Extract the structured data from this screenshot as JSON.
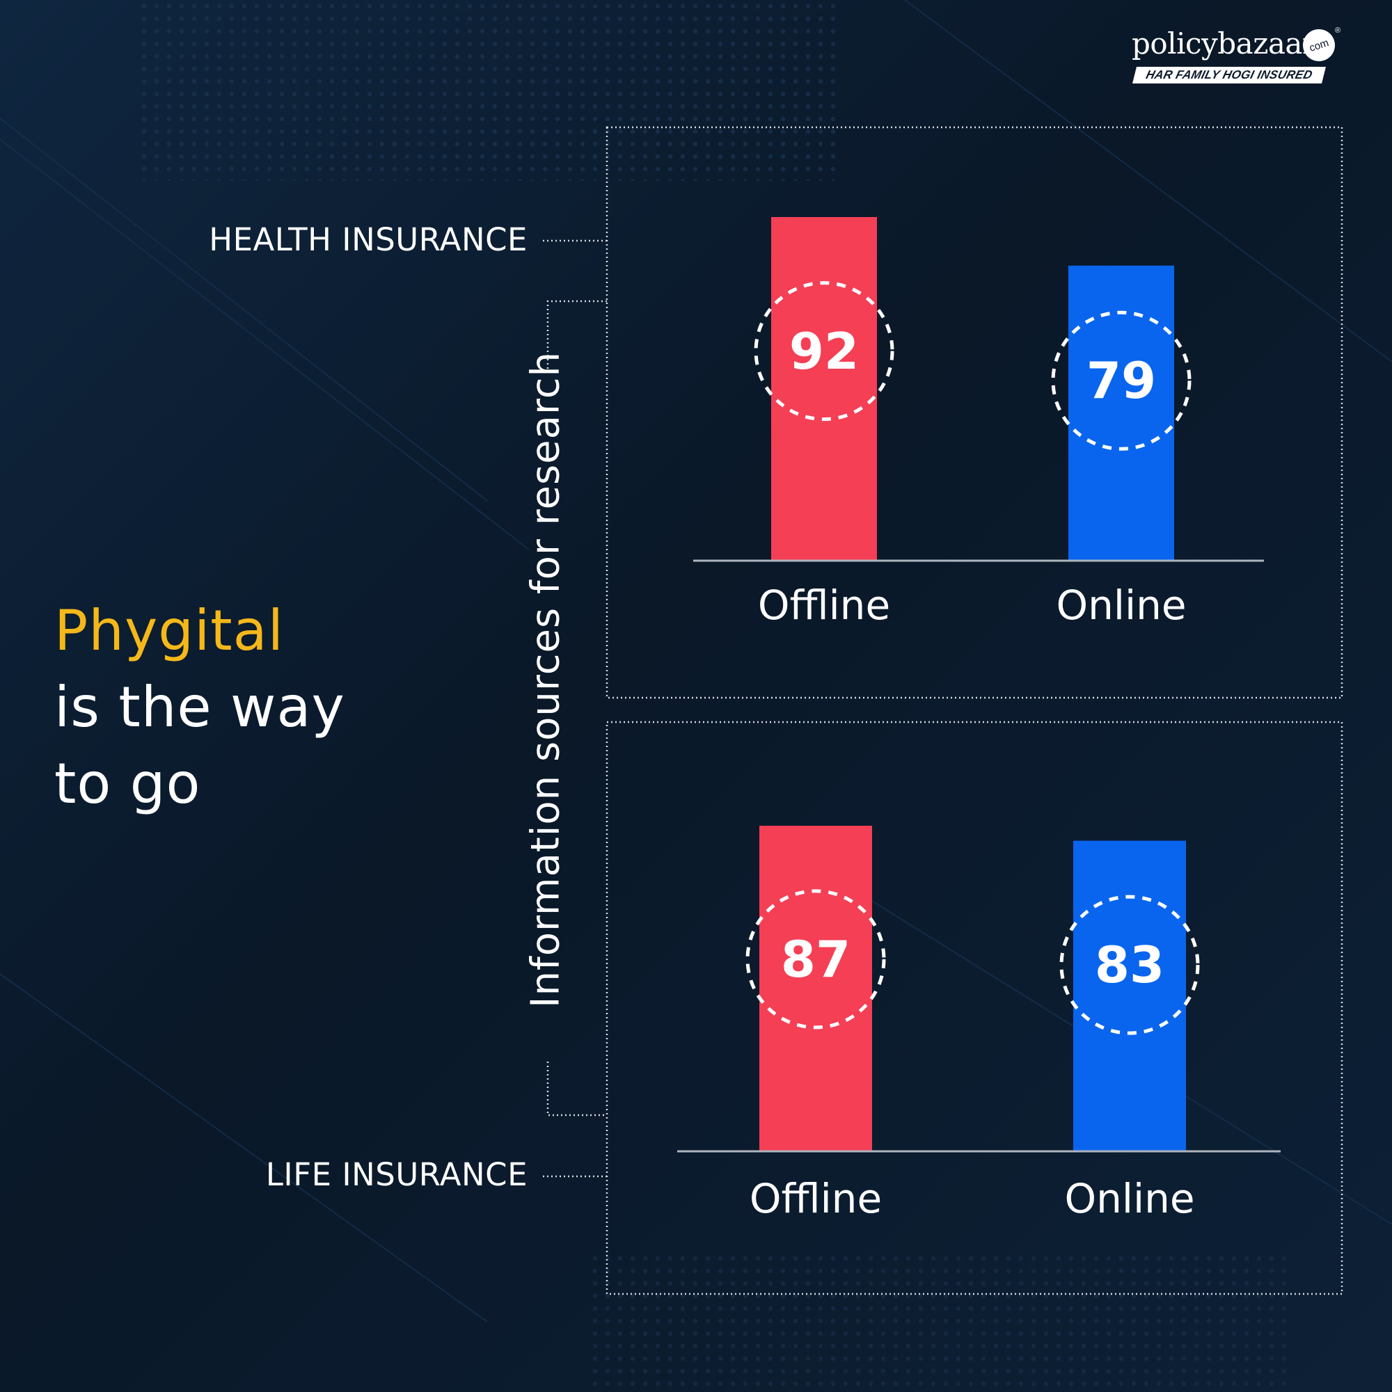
{
  "logo": {
    "wordmark": "policybazaar",
    "com_badge": "com",
    "registered": "®",
    "tagline": "HAR FAMILY HOGI INSURED"
  },
  "headline": {
    "accent": "Phygital",
    "line2": "is the way",
    "line3": "to go"
  },
  "colors": {
    "background": "#0c1a2c",
    "accent_yellow": "#f5b81a",
    "offline_red": "#f43f55",
    "online_blue": "#0a65ee",
    "frame_dots": "#d8dde6",
    "baseline": "#aeb4bd"
  },
  "chart_data": [
    {
      "type": "bar",
      "title": "HEALTH INSURANCE",
      "ylabel": "Information sources for research",
      "categories": [
        "Offline",
        "Online"
      ],
      "values": [
        92,
        79
      ],
      "value_labels": [
        "92",
        "79"
      ],
      "colors": [
        "#f43f55",
        "#0a65ee"
      ],
      "legend": "none",
      "grid": false
    },
    {
      "type": "bar",
      "title": "LIFE INSURANCE",
      "ylabel": "Information sources for research",
      "categories": [
        "Offline",
        "Online"
      ],
      "values": [
        87,
        83
      ],
      "value_labels": [
        "87",
        "83"
      ],
      "colors": [
        "#f43f55",
        "#0a65ee"
      ],
      "legend": "none",
      "grid": false
    }
  ]
}
